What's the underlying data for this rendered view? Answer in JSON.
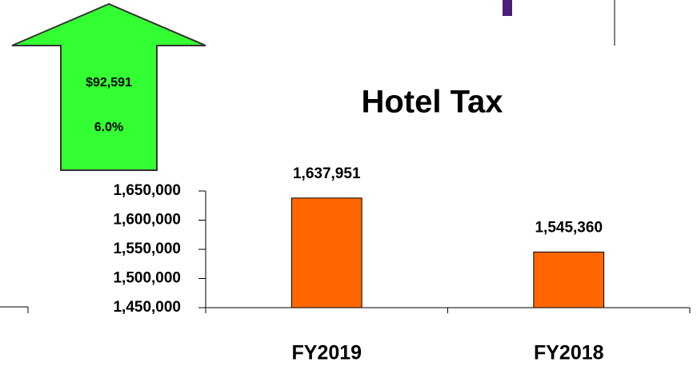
{
  "chart_data": {
    "type": "bar",
    "title": "Hotel Tax",
    "categories": [
      "FY2019",
      "FY2018"
    ],
    "values": [
      1637951,
      1545360
    ],
    "value_labels": [
      "1,637,951",
      "1,545,360"
    ],
    "color": "#ff6600",
    "ylim": [
      1450000,
      1650000
    ],
    "yticks": [
      {
        "value": 1450000,
        "label": "1,450,000"
      },
      {
        "value": 1500000,
        "label": "1,500,000"
      },
      {
        "value": 1550000,
        "label": "1,550,000"
      },
      {
        "value": 1600000,
        "label": "1,600,000"
      },
      {
        "value": 1650000,
        "label": "1,650,000"
      }
    ],
    "annotations": [
      "$92,591",
      "6.0%"
    ]
  }
}
